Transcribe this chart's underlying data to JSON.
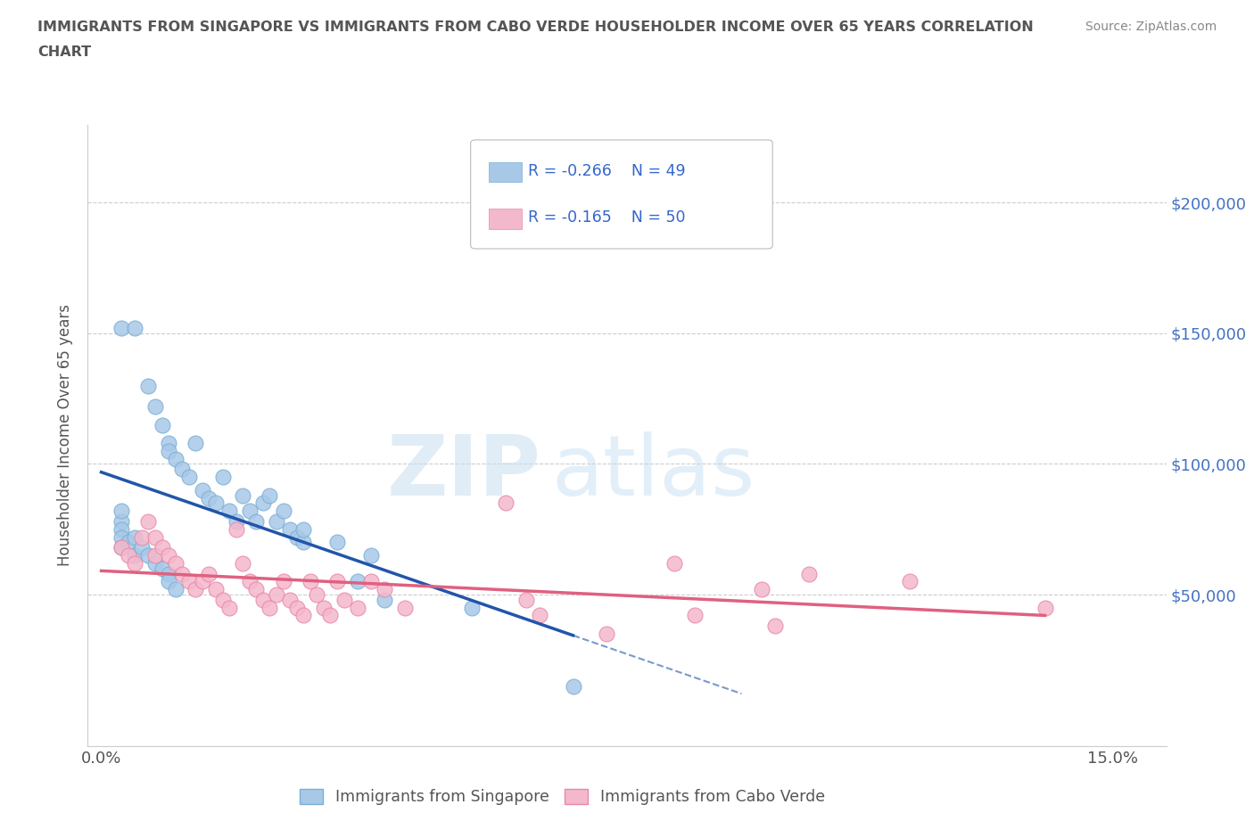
{
  "title_line1": "IMMIGRANTS FROM SINGAPORE VS IMMIGRANTS FROM CABO VERDE HOUSEHOLDER INCOME OVER 65 YEARS CORRELATION",
  "title_line2": "CHART",
  "source_text": "Source: ZipAtlas.com",
  "ylabel": "Householder Income Over 65 years",
  "xlim": [
    -0.002,
    0.158
  ],
  "ylim": [
    -8000,
    230000
  ],
  "ytick_positions": [
    0,
    50000,
    100000,
    150000,
    200000
  ],
  "ytick_labels": [
    "",
    "$50,000",
    "$100,000",
    "$150,000",
    "$200,000"
  ],
  "xtick_positions": [
    0.0,
    0.03,
    0.06,
    0.09,
    0.12,
    0.15
  ],
  "xtick_labels": [
    "0.0%",
    "",
    "",
    "",
    "",
    "15.0%"
  ],
  "watermark_zip": "ZIP",
  "watermark_atlas": "atlas",
  "singapore_color": "#a8c8e8",
  "singapore_edge": "#7aafd4",
  "cabo_verde_color": "#f4b8cc",
  "cabo_verde_edge": "#e888a8",
  "trend_blue": "#2255aa",
  "trend_pink": "#e06080",
  "legend_R_singapore": "R = -0.266",
  "legend_N_singapore": "N = 49",
  "legend_R_cabo": "R = -0.165",
  "legend_N_cabo": "N = 50",
  "singapore_x": [
    0.003,
    0.005,
    0.007,
    0.008,
    0.009,
    0.01,
    0.01,
    0.011,
    0.012,
    0.013,
    0.014,
    0.015,
    0.016,
    0.017,
    0.018,
    0.019,
    0.02,
    0.021,
    0.022,
    0.023,
    0.024,
    0.025,
    0.026,
    0.027,
    0.028,
    0.029,
    0.03,
    0.003,
    0.003,
    0.003,
    0.003,
    0.003,
    0.004,
    0.005,
    0.005,
    0.006,
    0.007,
    0.008,
    0.009,
    0.01,
    0.01,
    0.011,
    0.03,
    0.035,
    0.038,
    0.04,
    0.042,
    0.055,
    0.07
  ],
  "singapore_y": [
    152000,
    152000,
    130000,
    122000,
    115000,
    108000,
    105000,
    102000,
    98000,
    95000,
    108000,
    90000,
    87000,
    85000,
    95000,
    82000,
    78000,
    88000,
    82000,
    78000,
    85000,
    88000,
    78000,
    82000,
    75000,
    72000,
    70000,
    78000,
    82000,
    75000,
    72000,
    68000,
    70000,
    72000,
    65000,
    68000,
    65000,
    62000,
    60000,
    58000,
    55000,
    52000,
    75000,
    70000,
    55000,
    65000,
    48000,
    45000,
    15000
  ],
  "cabo_verde_x": [
    0.003,
    0.004,
    0.005,
    0.006,
    0.007,
    0.008,
    0.008,
    0.009,
    0.01,
    0.011,
    0.012,
    0.013,
    0.014,
    0.015,
    0.016,
    0.017,
    0.018,
    0.019,
    0.02,
    0.021,
    0.022,
    0.023,
    0.024,
    0.025,
    0.026,
    0.027,
    0.028,
    0.029,
    0.03,
    0.031,
    0.032,
    0.033,
    0.034,
    0.035,
    0.036,
    0.038,
    0.04,
    0.042,
    0.045,
    0.06,
    0.063,
    0.065,
    0.075,
    0.085,
    0.088,
    0.098,
    0.1,
    0.105,
    0.12,
    0.14
  ],
  "cabo_verde_y": [
    68000,
    65000,
    62000,
    72000,
    78000,
    65000,
    72000,
    68000,
    65000,
    62000,
    58000,
    55000,
    52000,
    55000,
    58000,
    52000,
    48000,
    45000,
    75000,
    62000,
    55000,
    52000,
    48000,
    45000,
    50000,
    55000,
    48000,
    45000,
    42000,
    55000,
    50000,
    45000,
    42000,
    55000,
    48000,
    45000,
    55000,
    52000,
    45000,
    85000,
    48000,
    42000,
    35000,
    62000,
    42000,
    52000,
    38000,
    58000,
    55000,
    45000
  ],
  "background_color": "#ffffff",
  "grid_color": "#cccccc",
  "title_color": "#555555",
  "right_label_color": "#4472c4",
  "legend_text_color": "#3366cc",
  "legend_border_color": "#aaaaaa"
}
